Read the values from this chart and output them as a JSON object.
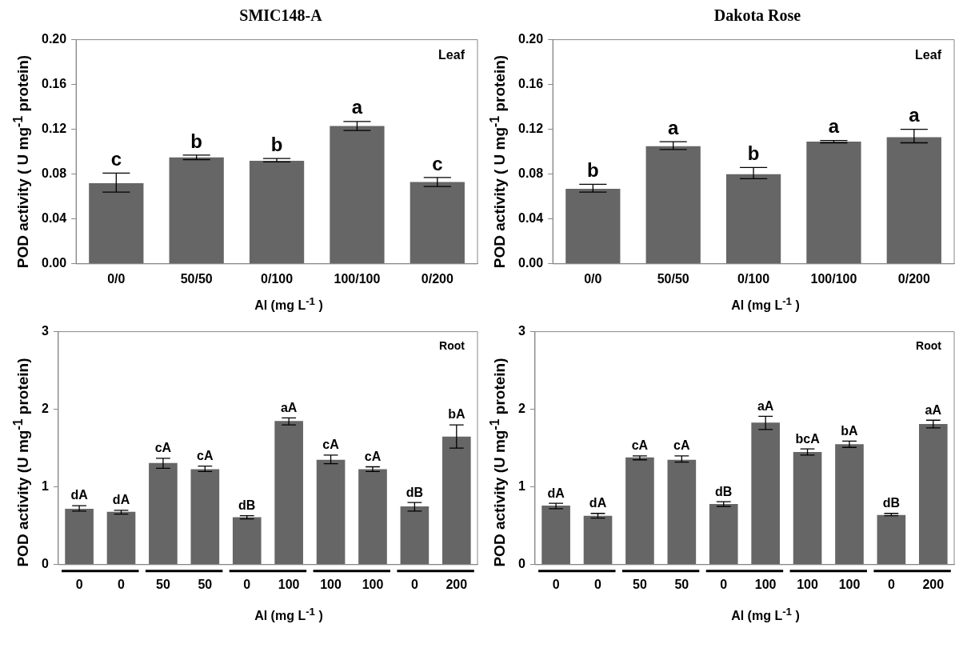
{
  "chart_data": [
    {
      "type": "bar",
      "title": "SMIC148-A",
      "xlabel": "Al (mg L$^{-1}$ )",
      "ylabel": "POD activity ( U mg$^{-1}$ protein)",
      "annotations": [
        "Leaf"
      ],
      "categories": [
        "0/0",
        "50/50",
        "0/100",
        "100/100",
        "0/200"
      ],
      "values": [
        0.072,
        0.095,
        0.092,
        0.123,
        0.073
      ],
      "color": "#666666",
      "errors": [
        [
          0.064,
          0.081
        ],
        [
          0.093,
          0.097
        ],
        [
          0.091,
          0.094
        ],
        [
          0.119,
          0.127
        ],
        [
          0.069,
          0.077
        ]
      ],
      "value_labels": [
        "c",
        "b",
        "b",
        "a",
        "c"
      ],
      "ylim": [
        0,
        0.2
      ],
      "yticks": [
        {
          "value": 0,
          "label": "0.00"
        },
        {
          "value": 0.04,
          "label": "0.04"
        },
        {
          "value": 0.08,
          "label": "0.08"
        },
        {
          "value": 0.12,
          "label": "0.12"
        },
        {
          "value": 0.16,
          "label": "0.16"
        },
        {
          "value": 0.2,
          "label": "0.20"
        }
      ]
    },
    {
      "type": "bar",
      "title": "Dakota Rose",
      "xlabel": "Al (mg L$^{-1}$ )",
      "ylabel": "POD activity ( U mg$^{-1}$ protein)",
      "annotations": [
        "Leaf"
      ],
      "categories": [
        "0/0",
        "50/50",
        "0/100",
        "100/100",
        "0/200"
      ],
      "values": [
        0.067,
        0.105,
        0.08,
        0.109,
        0.113
      ],
      "color": "#666666",
      "errors": [
        [
          0.064,
          0.071
        ],
        [
          0.102,
          0.109
        ],
        [
          0.076,
          0.086
        ],
        [
          0.108,
          0.11
        ],
        [
          0.108,
          0.12
        ]
      ],
      "value_labels": [
        "b",
        "a",
        "b",
        "a",
        "a"
      ],
      "ylim": [
        0,
        0.2
      ],
      "yticks": [
        {
          "value": 0,
          "label": "0.00"
        },
        {
          "value": 0.04,
          "label": "0.04"
        },
        {
          "value": 0.08,
          "label": "0.08"
        },
        {
          "value": 0.12,
          "label": "0.12"
        },
        {
          "value": 0.16,
          "label": "0.16"
        },
        {
          "value": 0.2,
          "label": "0.20"
        }
      ]
    },
    {
      "type": "bar",
      "xlabel": "Al (mg L$^{-1}$ )",
      "ylabel": "POD activity (U mg$^{-1}$ protein)",
      "annotations": [
        "Root"
      ],
      "categories": [
        "0",
        "0",
        "50",
        "50",
        "0",
        "100",
        "100",
        "100",
        "0",
        "200"
      ],
      "values": [
        0.72,
        0.68,
        1.31,
        1.23,
        0.61,
        1.85,
        1.35,
        1.23,
        0.75,
        1.65
      ],
      "color": "#666666",
      "errors": [
        [
          0.69,
          0.76
        ],
        [
          0.65,
          0.7
        ],
        [
          1.24,
          1.37
        ],
        [
          1.2,
          1.27
        ],
        [
          0.59,
          0.63
        ],
        [
          1.8,
          1.89
        ],
        [
          1.3,
          1.41
        ],
        [
          1.2,
          1.26
        ],
        [
          0.69,
          0.8
        ],
        [
          1.5,
          1.8
        ]
      ],
      "value_labels": [
        "dA",
        "dA",
        "cA",
        "cA",
        "dB",
        "aA",
        "cA",
        "cA",
        "dB",
        "bA"
      ],
      "ylim": [
        0,
        3
      ],
      "yticks": [
        0,
        1,
        2,
        3
      ]
    },
    {
      "type": "bar",
      "xlabel": "Al (mg L$^{-1}$ )",
      "ylabel": "POD activity (U mg$^{-1}$ protein)",
      "annotations": [
        "Root"
      ],
      "categories": [
        "0",
        "0",
        "50",
        "50",
        "0",
        "100",
        "100",
        "100",
        "0",
        "200"
      ],
      "values": [
        0.76,
        0.63,
        1.38,
        1.35,
        0.78,
        1.83,
        1.45,
        1.55,
        0.64,
        1.81
      ],
      "color": "#666666",
      "errors": [
        [
          0.72,
          0.79
        ],
        [
          0.6,
          0.66
        ],
        [
          1.35,
          1.4
        ],
        [
          1.32,
          1.4
        ],
        [
          0.75,
          0.81
        ],
        [
          1.74,
          1.91
        ],
        [
          1.41,
          1.49
        ],
        [
          1.51,
          1.59
        ],
        [
          0.63,
          0.66
        ],
        [
          1.76,
          1.86
        ]
      ],
      "value_labels": [
        "dA",
        "dA",
        "cA",
        "cA",
        "dB",
        "aA",
        "bcA",
        "bA",
        "dB",
        "aA"
      ],
      "ylim": [
        0,
        3
      ],
      "yticks": [
        0,
        1,
        2,
        3
      ]
    }
  ]
}
